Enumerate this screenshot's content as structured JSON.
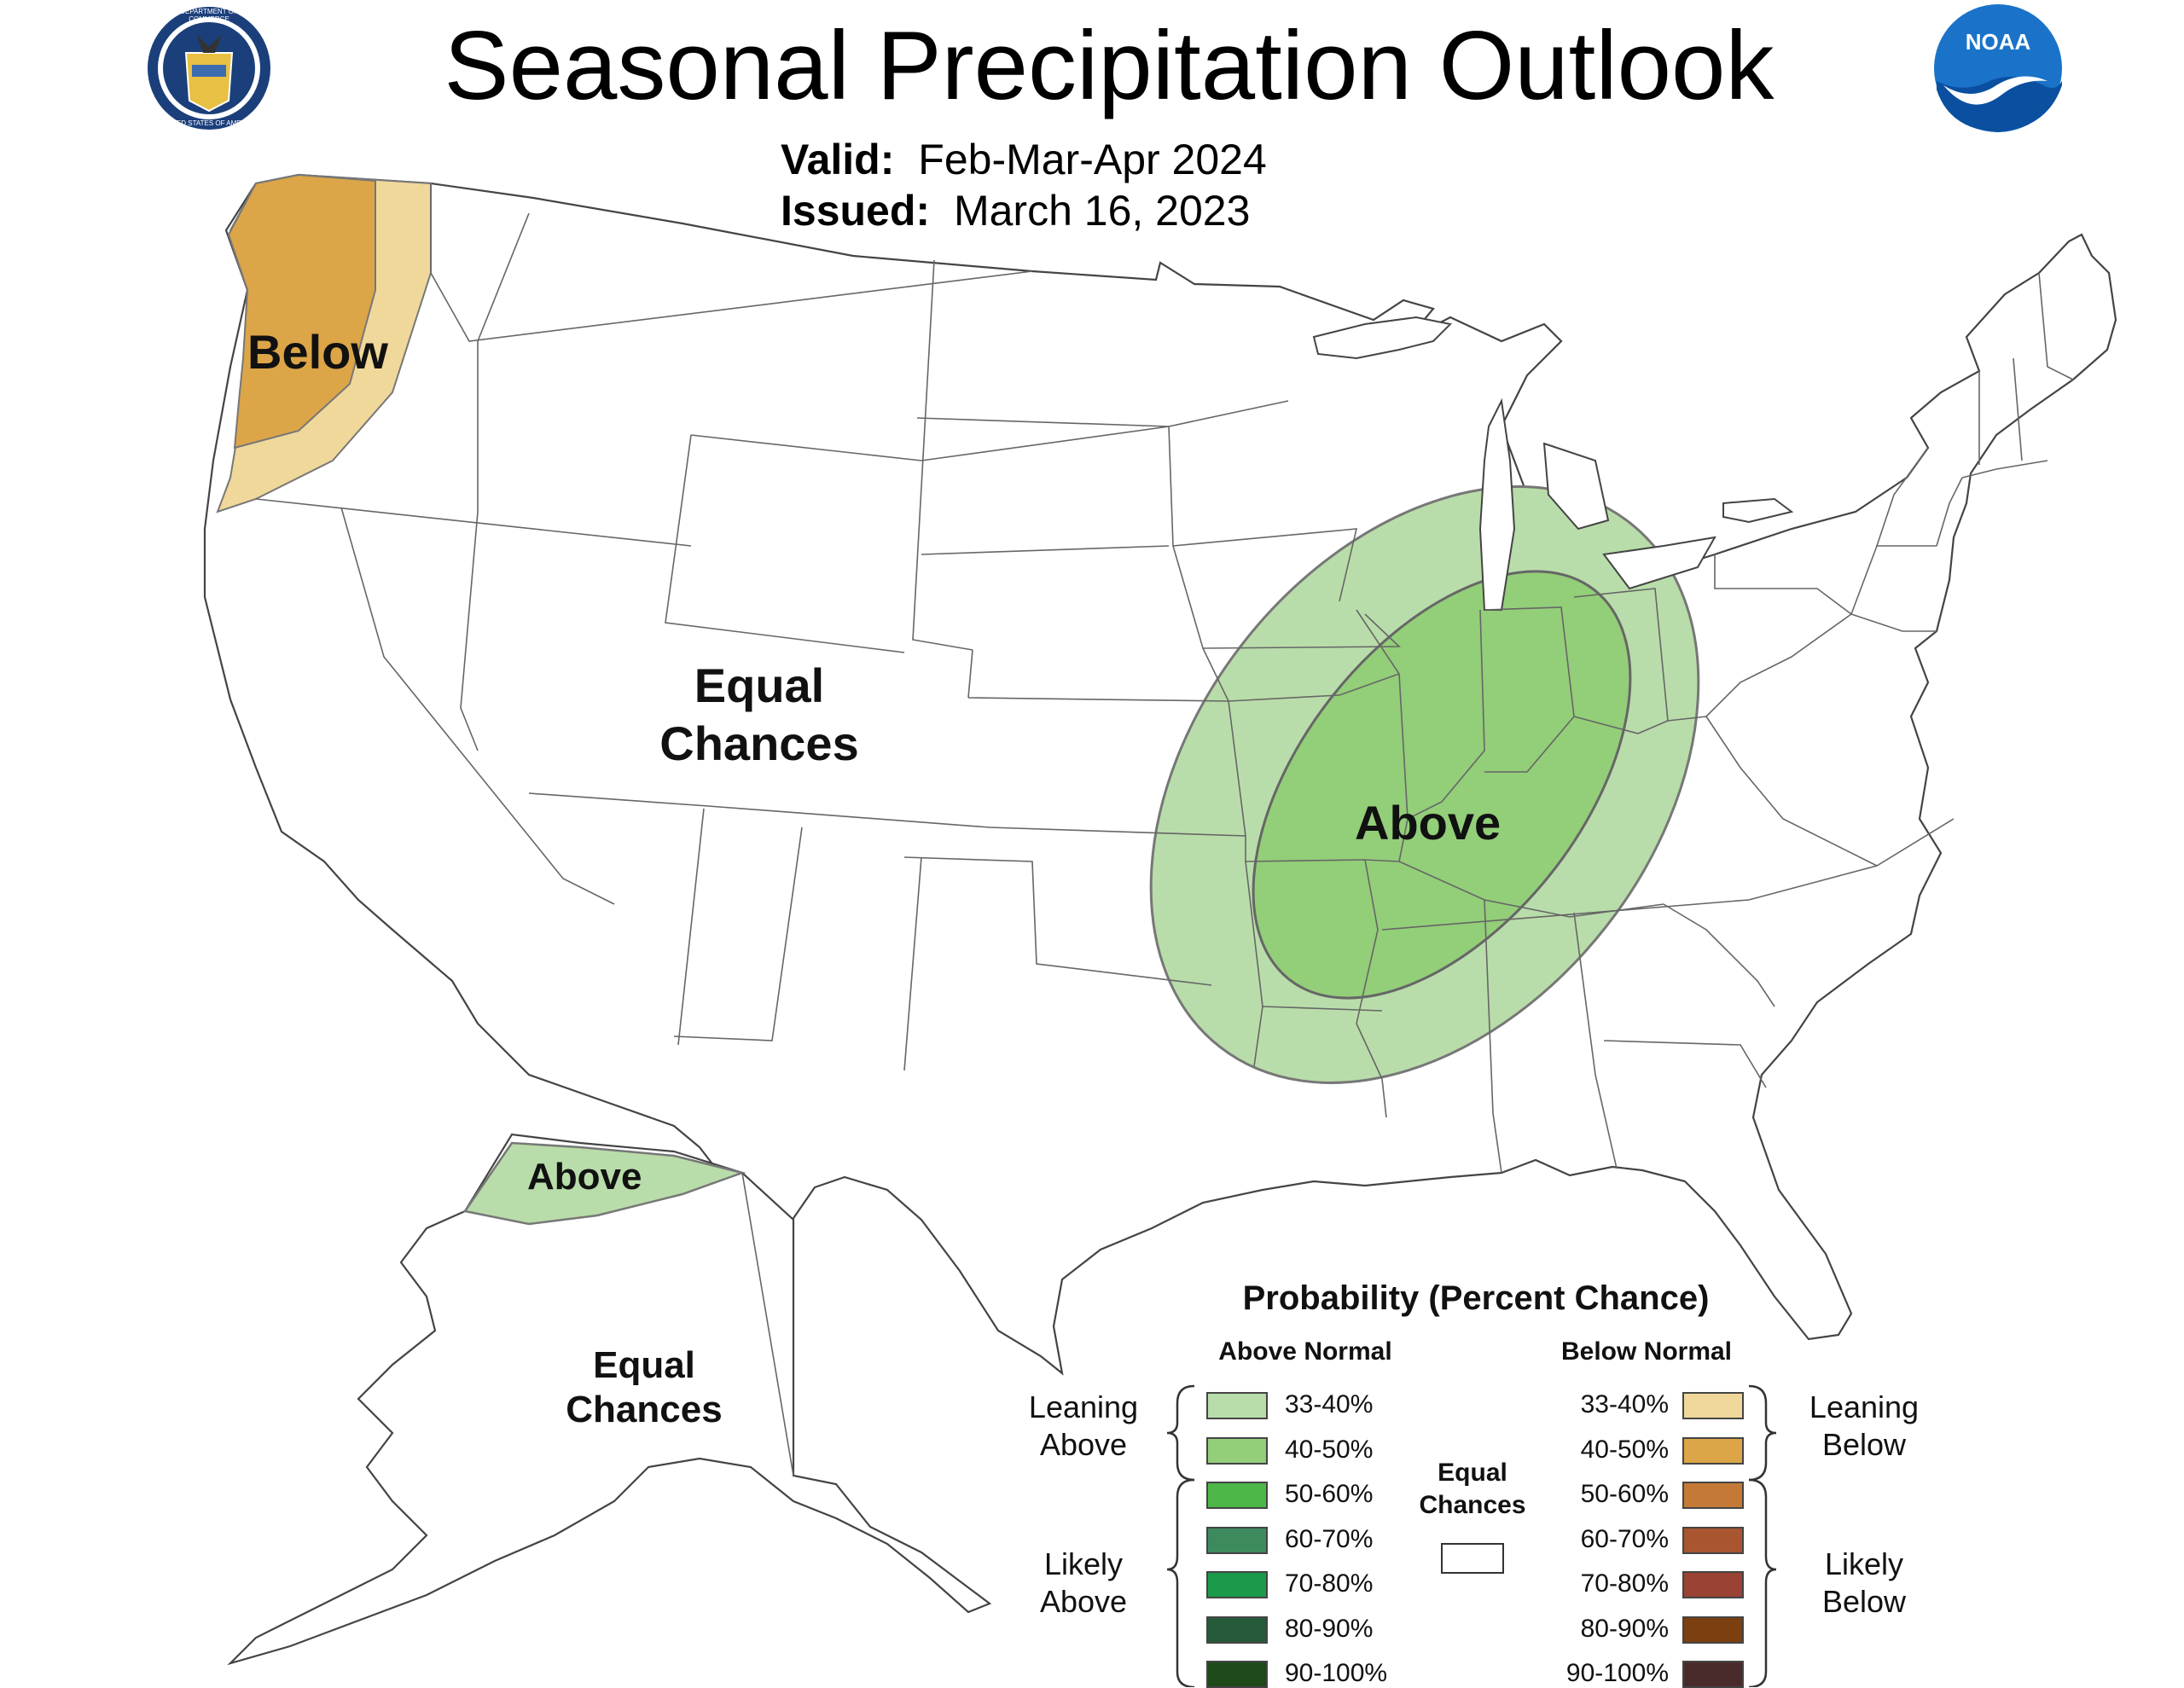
{
  "header": {
    "title": "Seasonal Precipitation Outlook",
    "valid_label": "Valid:",
    "valid_value": "Feb-Mar-Apr 2024",
    "issued_label": "Issued:",
    "issued_value": "March 16, 2023"
  },
  "logos": {
    "commerce_seal_ring": "DEPARTMENT OF COMMERCE",
    "commerce_seal_ring_bottom": "UNITED STATES OF AMERICA",
    "noaa": "NOAA"
  },
  "map_labels": {
    "below_pnw": "Below",
    "equal_chances_conus_line1": "Equal",
    "equal_chances_conus_line2": "Chances",
    "above_ohio_valley": "Above",
    "above_alaska": "Above",
    "equal_chances_alaska_line1": "Equal",
    "equal_chances_alaska_line2": "Chances"
  },
  "colors": {
    "below_33_40": "#f0d89a",
    "below_40_50": "#dca548",
    "above_33_40": "#b9ddaa",
    "above_40_50": "#93ce79",
    "state_line": "#555555"
  },
  "legend": {
    "title": "Probability (Percent Chance)",
    "above_header": "Above Normal",
    "below_header": "Below Normal",
    "leaning_above_line1": "Leaning",
    "leaning_above_line2": "Above",
    "likely_above_line1": "Likely",
    "likely_above_line2": "Above",
    "leaning_below_line1": "Leaning",
    "leaning_below_line2": "Below",
    "likely_below_line1": "Likely",
    "likely_below_line2": "Below",
    "equal_line1": "Equal",
    "equal_line2": "Chances",
    "above_items": [
      {
        "label": "33-40%",
        "color": "#b9ddaa"
      },
      {
        "label": "40-50%",
        "color": "#93ce79"
      },
      {
        "label": "50-60%",
        "color": "#4db848"
      },
      {
        "label": "60-70%",
        "color": "#3d8a5f"
      },
      {
        "label": "70-80%",
        "color": "#1a9a4a"
      },
      {
        "label": "80-90%",
        "color": "#245a3a"
      },
      {
        "label": "90-100%",
        "color": "#1e4a1a"
      }
    ],
    "below_items": [
      {
        "label": "33-40%",
        "color": "#f0d89a"
      },
      {
        "label": "40-50%",
        "color": "#dca548"
      },
      {
        "label": "50-60%",
        "color": "#c47a36"
      },
      {
        "label": "60-70%",
        "color": "#a9552f"
      },
      {
        "label": "70-80%",
        "color": "#9a4233"
      },
      {
        "label": "80-90%",
        "color": "#7b3f10"
      },
      {
        "label": "90-100%",
        "color": "#4a2b2b"
      }
    ]
  }
}
